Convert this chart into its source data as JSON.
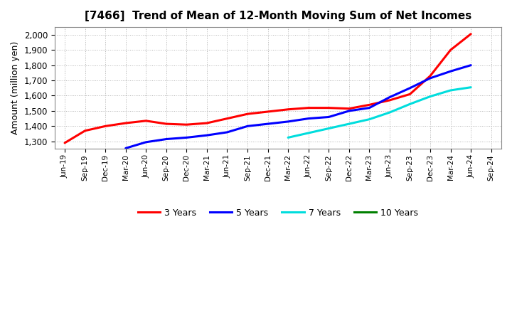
{
  "title": "[7466]  Trend of Mean of 12-Month Moving Sum of Net Incomes",
  "ylabel": "Amount (million yen)",
  "background_color": "#ffffff",
  "grid_color": "#aaaaaa",
  "ylim": [
    1250,
    2050
  ],
  "yticks": [
    1300,
    1400,
    1500,
    1600,
    1700,
    1800,
    1900,
    2000
  ],
  "x_labels": [
    "Jun-19",
    "Sep-19",
    "Dec-19",
    "Mar-20",
    "Jun-20",
    "Sep-20",
    "Dec-20",
    "Mar-21",
    "Jun-21",
    "Sep-21",
    "Dec-21",
    "Mar-22",
    "Jun-22",
    "Sep-22",
    "Dec-22",
    "Mar-23",
    "Jun-23",
    "Sep-23",
    "Dec-23",
    "Mar-24",
    "Jun-24",
    "Sep-24"
  ],
  "series": {
    "3 Years": {
      "color": "#ff0000",
      "x": [
        0,
        3,
        6,
        9,
        12,
        15,
        18,
        21,
        24,
        27,
        30,
        33,
        36,
        39,
        42,
        45,
        48,
        51,
        54,
        57,
        60
      ],
      "y": [
        1290,
        1370,
        1400,
        1420,
        1435,
        1415,
        1410,
        1420,
        1450,
        1480,
        1495,
        1510,
        1520,
        1520,
        1515,
        1540,
        1570,
        1610,
        1730,
        1900,
        2005
      ]
    },
    "5 Years": {
      "color": "#0000ff",
      "x": [
        9,
        12,
        15,
        18,
        21,
        24,
        27,
        30,
        33,
        36,
        39,
        42,
        45,
        48,
        51,
        54,
        57,
        60
      ],
      "y": [
        1255,
        1295,
        1315,
        1325,
        1340,
        1360,
        1400,
        1415,
        1430,
        1450,
        1460,
        1500,
        1520,
        1590,
        1650,
        1715,
        1760,
        1800
      ]
    },
    "7 Years": {
      "color": "#00dddd",
      "x": [
        33,
        36,
        39,
        42,
        45,
        48,
        51,
        54,
        57,
        60
      ],
      "y": [
        1325,
        1355,
        1385,
        1415,
        1445,
        1490,
        1545,
        1595,
        1635,
        1655
      ]
    },
    "10 Years": {
      "color": "#008000",
      "x": [],
      "y": []
    }
  },
  "legend": {
    "labels": [
      "3 Years",
      "5 Years",
      "7 Years",
      "10 Years"
    ],
    "colors": [
      "#ff0000",
      "#0000ff",
      "#00dddd",
      "#008000"
    ]
  }
}
